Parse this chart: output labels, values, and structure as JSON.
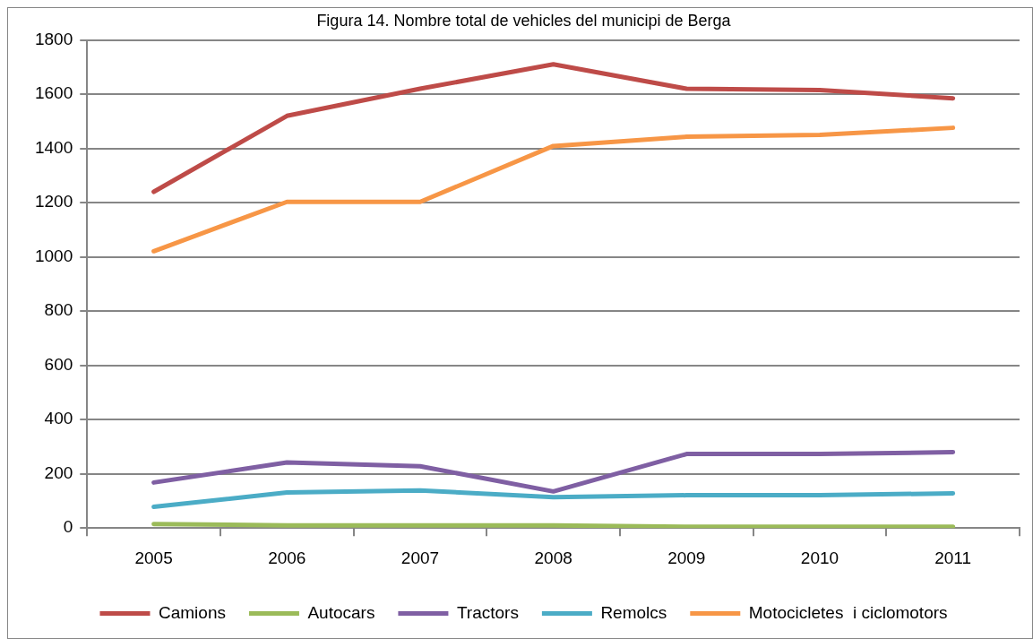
{
  "chart_data": {
    "type": "line",
    "title": "Figura 14. Nombre total de vehicles del municipi de Berga",
    "categories": [
      "2005",
      "2006",
      "2007",
      "2008",
      "2009",
      "2010",
      "2011"
    ],
    "series": [
      {
        "name": "Camions",
        "color": "#be4b48",
        "values": [
          1240,
          1520,
          1620,
          1710,
          1620,
          1615,
          1585
        ]
      },
      {
        "name": "Autocars",
        "color": "#9bbb59",
        "values": [
          15,
          10,
          10,
          10,
          5,
          5,
          5
        ]
      },
      {
        "name": "Tractors",
        "color": "#7f5fa3",
        "values": [
          168,
          242,
          228,
          135,
          273,
          273,
          280
        ]
      },
      {
        "name": "Remolcs",
        "color": "#4bacc6",
        "values": [
          78,
          131,
          139,
          114,
          121,
          121,
          128
        ]
      },
      {
        "name": "Motocicletes  i ciclomotors",
        "color": "#f79646",
        "values": [
          1021,
          1203,
          1203,
          1409,
          1443,
          1450,
          1476
        ]
      }
    ],
    "ylim": [
      0,
      1800
    ],
    "yticks": [
      0,
      200,
      400,
      600,
      800,
      1000,
      1200,
      1400,
      1600,
      1800
    ],
    "grid": "y",
    "legend": "bottom"
  }
}
